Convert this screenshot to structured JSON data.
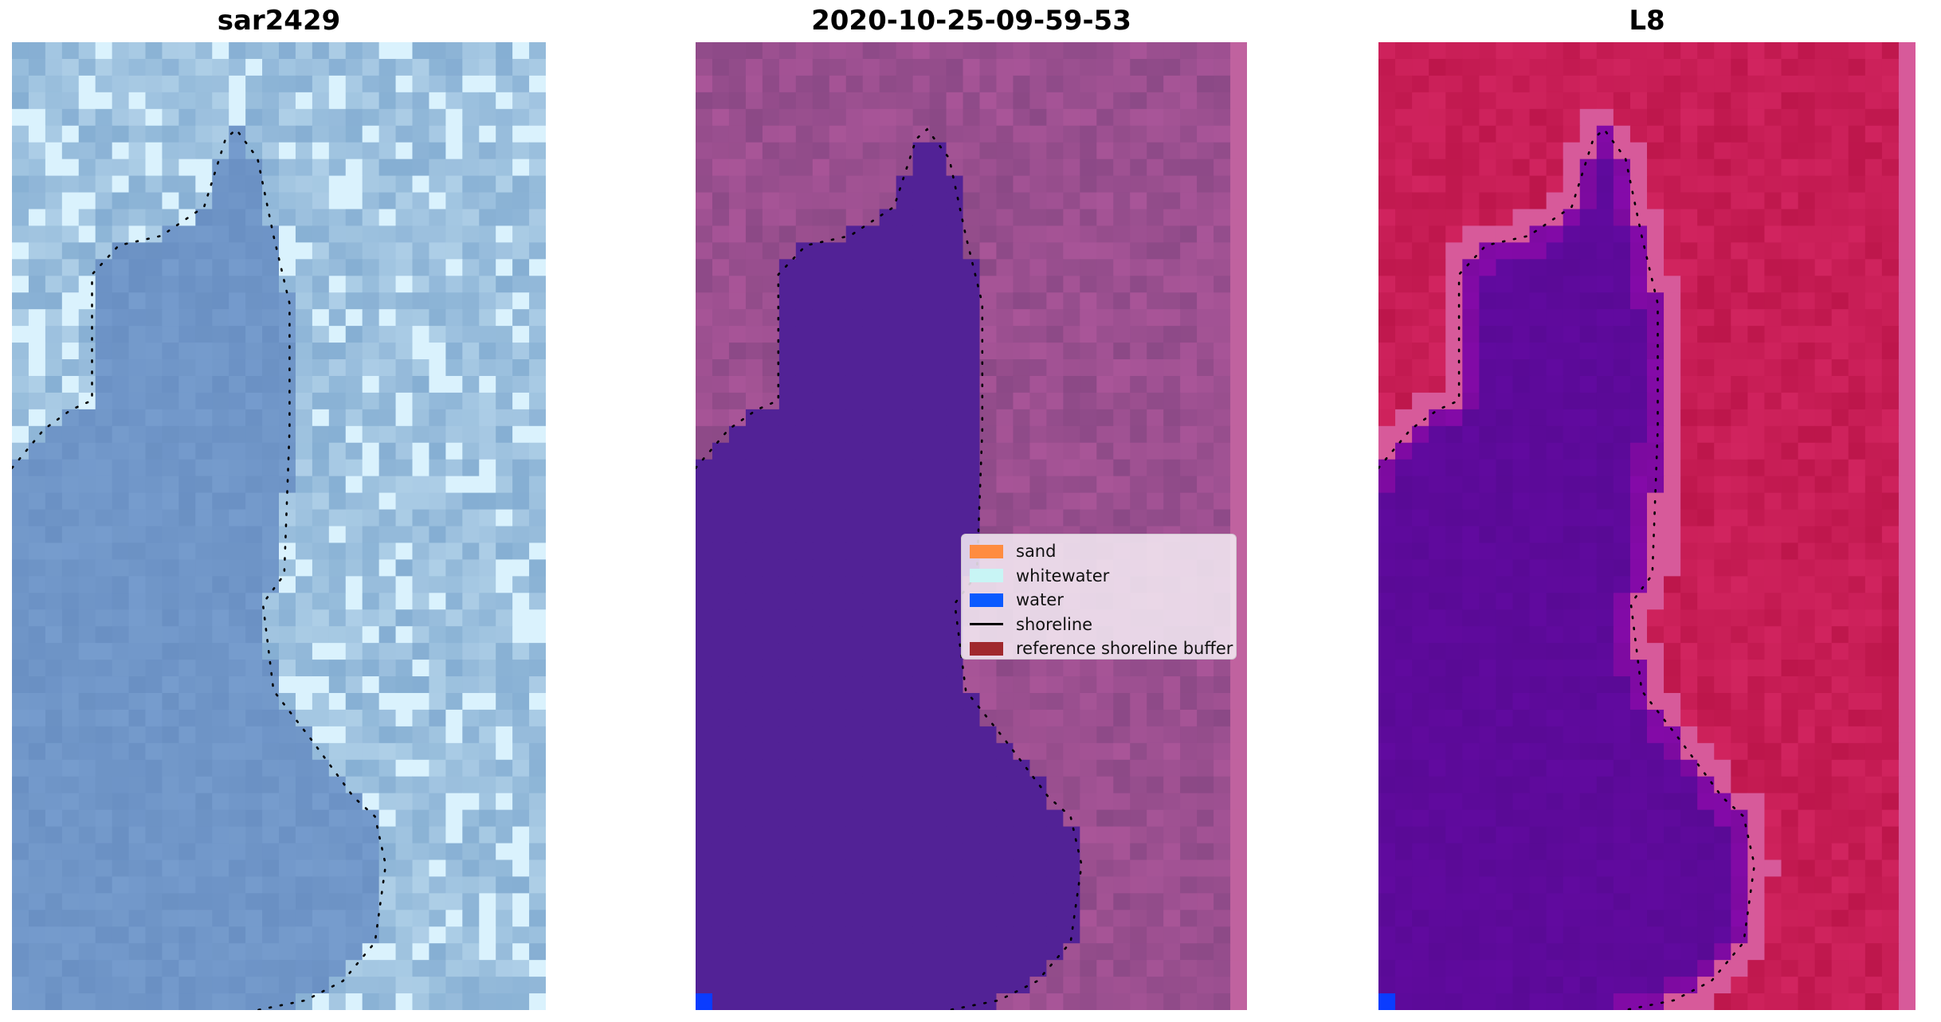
{
  "panels": [
    {
      "title": "sar2429"
    },
    {
      "title": "2020-10-25-09-59-53"
    },
    {
      "title": "L8"
    }
  ],
  "legend": {
    "items": [
      {
        "label": "sand",
        "color": "#ff8c40",
        "kind": "patch"
      },
      {
        "label": "whitewater",
        "color": "#c8f5f5",
        "kind": "patch"
      },
      {
        "label": "water",
        "color": "#0a5aff",
        "kind": "patch"
      },
      {
        "label": "shoreline",
        "color": "#000000",
        "kind": "line"
      },
      {
        "label": "reference shoreline buffer",
        "color": "#a0282d",
        "kind": "patch"
      }
    ]
  },
  "colors": {
    "rgb_water": "#7096c8",
    "rgb_land": "#9ec2df",
    "classified_water": "#522296",
    "classified_land": "#9a4f8f",
    "classified_edge": "#c0629f",
    "ndwi_water": "#5d0a9a",
    "ndwi_land": "#c71d55",
    "ndwi_edge": "#d75a9a",
    "water_pixel": "#0a3cff",
    "shoreline": "#000000"
  }
}
